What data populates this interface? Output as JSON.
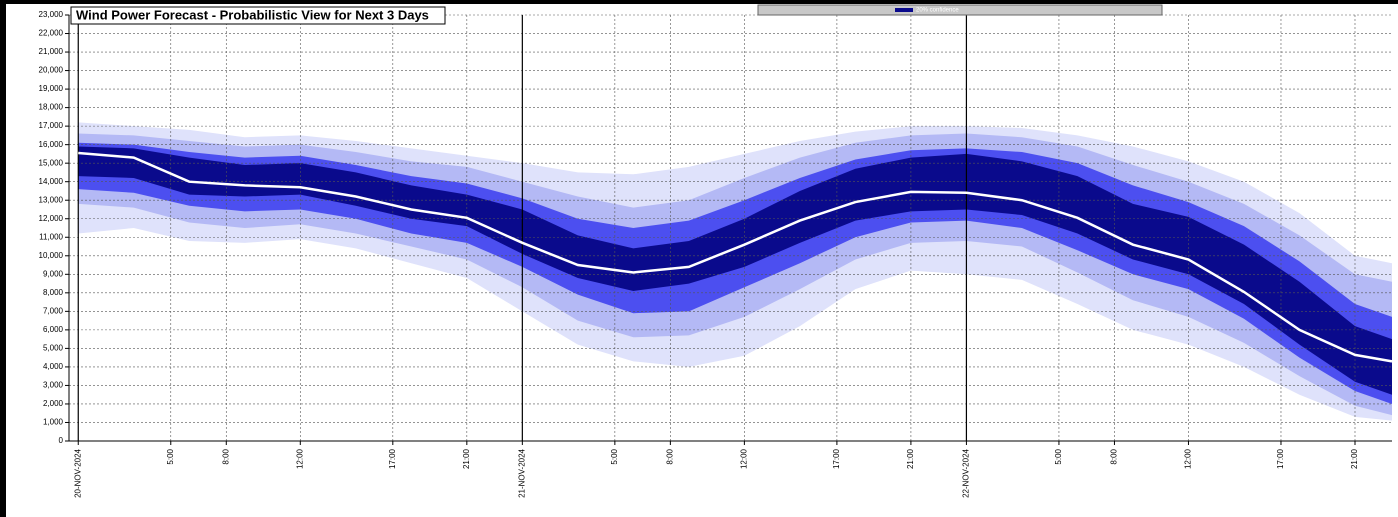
{
  "chart_data": {
    "type": "fan",
    "title": "Wind Power Forecast - Probabilistic View for Next 3 Days",
    "x": [
      0,
      3,
      6,
      9,
      12,
      15,
      18,
      21,
      24,
      27,
      30,
      33,
      36,
      39,
      42,
      45,
      48,
      51,
      54,
      57,
      60,
      63,
      66,
      69,
      71
    ],
    "xlim": [
      -0.5,
      71
    ],
    "xticks": [
      {
        "value": 0,
        "label": "20-NOV-2024"
      },
      {
        "value": 5,
        "label": "5:00"
      },
      {
        "value": 8,
        "label": "8:00"
      },
      {
        "value": 12,
        "label": "12:00"
      },
      {
        "value": 17,
        "label": "17:00"
      },
      {
        "value": 21,
        "label": "21:00"
      },
      {
        "value": 24,
        "label": "21-NOV-2024"
      },
      {
        "value": 29,
        "label": "5:00"
      },
      {
        "value": 32,
        "label": "8:00"
      },
      {
        "value": 36,
        "label": "12:00"
      },
      {
        "value": 41,
        "label": "17:00"
      },
      {
        "value": 45,
        "label": "21:00"
      },
      {
        "value": 48,
        "label": "22-NOV-2024"
      },
      {
        "value": 53,
        "label": "5:00"
      },
      {
        "value": 56,
        "label": "8:00"
      },
      {
        "value": 60,
        "label": "12:00"
      },
      {
        "value": 65,
        "label": "17:00"
      },
      {
        "value": 69,
        "label": "21:00"
      }
    ],
    "ylim": [
      0,
      23000
    ],
    "yticks": [
      0,
      {
        "value": 1000,
        "label": "1,000"
      },
      {
        "value": 2000,
        "label": "2,000"
      },
      {
        "value": 3000,
        "label": "3,000"
      },
      {
        "value": 4000,
        "label": "4,000"
      },
      {
        "value": 5000,
        "label": "5,000"
      },
      {
        "value": 6000,
        "label": "6,000"
      },
      {
        "value": 7000,
        "label": "7,000"
      },
      {
        "value": 8000,
        "label": "8,000"
      },
      {
        "value": 9000,
        "label": "9,000"
      },
      {
        "value": 10000,
        "label": "10,000"
      },
      {
        "value": 11000,
        "label": "11,000"
      },
      {
        "value": 12000,
        "label": "12,000"
      },
      {
        "value": 13000,
        "label": "13,000"
      },
      {
        "value": 14000,
        "label": "14,000"
      },
      {
        "value": 15000,
        "label": "15,000"
      },
      {
        "value": 16000,
        "label": "16,000"
      },
      {
        "value": 17000,
        "label": "17,000"
      },
      {
        "value": 18000,
        "label": "18,000"
      },
      {
        "value": 19000,
        "label": "19,000"
      },
      {
        "value": 20000,
        "label": "20,000"
      },
      {
        "value": 21000,
        "label": "21,000"
      },
      {
        "value": 22000,
        "label": "22,000"
      },
      {
        "value": 23000,
        "label": "23,000"
      }
    ],
    "grid": true,
    "legend": "top",
    "bands": [
      {
        "color": "#dfe2fb",
        "upper": [
          17200,
          17000,
          16800,
          16400,
          16500,
          16200,
          15800,
          15400,
          15000,
          14500,
          14400,
          14800,
          15500,
          16200,
          16700,
          17000,
          17000,
          16900,
          16500,
          15900,
          15100,
          14000,
          12300,
          10000,
          9600
        ],
        "lower": [
          11200,
          11500,
          10800,
          10700,
          10900,
          10400,
          9600,
          8800,
          7000,
          5200,
          4300,
          4000,
          4600,
          6200,
          8200,
          9200,
          9000,
          8700,
          7400,
          6000,
          5200,
          4000,
          2500,
          1300,
          1100
        ]
      },
      {
        "color": "#b4b9f5",
        "upper": [
          16600,
          16500,
          16200,
          15900,
          16000,
          15600,
          15100,
          14800,
          14000,
          13200,
          12600,
          13000,
          14200,
          15300,
          16100,
          16500,
          16600,
          16400,
          15900,
          14900,
          14000,
          12800,
          11100,
          9000,
          8600
        ],
        "lower": [
          12800,
          12600,
          11800,
          11500,
          11700,
          11200,
          10500,
          9800,
          8300,
          6500,
          5600,
          5700,
          6700,
          8200,
          9800,
          10700,
          10800,
          10500,
          9100,
          7600,
          6700,
          5300,
          3500,
          1900,
          1400
        ]
      },
      {
        "color": "#4c4ff0",
        "upper": [
          16100,
          16000,
          15600,
          15300,
          15400,
          14900,
          14300,
          13900,
          13100,
          12000,
          11500,
          11900,
          13000,
          14200,
          15200,
          15700,
          15800,
          15600,
          15000,
          13800,
          12900,
          11600,
          9700,
          7400,
          6700
        ],
        "lower": [
          13600,
          13400,
          12700,
          12400,
          12500,
          12000,
          11200,
          10700,
          9400,
          7900,
          6900,
          7000,
          8300,
          9600,
          11000,
          11800,
          11900,
          11500,
          10300,
          9000,
          8200,
          6600,
          4500,
          2700,
          2000
        ]
      },
      {
        "name": "20% confidence",
        "color": "#0a0a8c",
        "upper": [
          15900,
          15800,
          15300,
          14900,
          15000,
          14500,
          13800,
          13300,
          12500,
          11100,
          10400,
          10800,
          12000,
          13500,
          14700,
          15300,
          15500,
          15100,
          14300,
          12800,
          12100,
          10600,
          8600,
          6200,
          5500
        ],
        "lower": [
          14300,
          14200,
          13300,
          13200,
          13300,
          12700,
          12000,
          11600,
          10100,
          8800,
          8100,
          8500,
          9400,
          10700,
          11900,
          12400,
          12500,
          12200,
          11200,
          9800,
          9000,
          7400,
          5200,
          3200,
          2500
        ]
      }
    ],
    "median": {
      "color": "#ffffff",
      "values": [
        15550,
        15300,
        14000,
        13800,
        13700,
        13200,
        12500,
        12050,
        10700,
        9500,
        9100,
        9400,
        10600,
        11900,
        12900,
        13450,
        13400,
        13000,
        12050,
        10600,
        9800,
        8050,
        6000,
        4650,
        4300
      ]
    }
  }
}
